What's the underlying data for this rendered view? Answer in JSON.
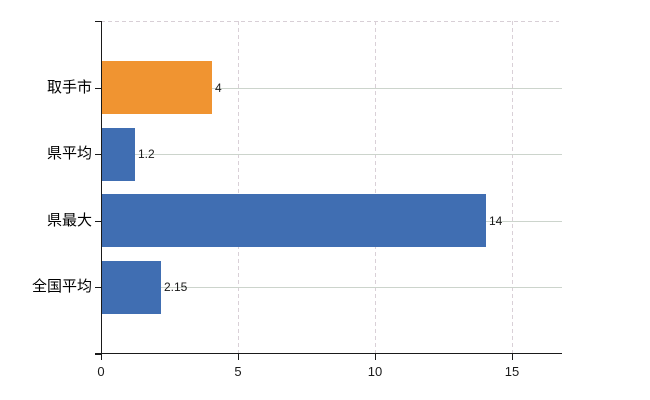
{
  "chart_data": {
    "type": "bar",
    "orientation": "horizontal",
    "title": "",
    "xlabel": "",
    "ylabel": "",
    "categories": [
      "取手市",
      "県平均",
      "県最大",
      "全国平均"
    ],
    "values": [
      4,
      1.2,
      14,
      2.15
    ],
    "value_labels": [
      "4",
      "1.2",
      "14",
      "2.15"
    ],
    "bar_colors": [
      "#f09431",
      "#406eb2",
      "#406eb2",
      "#406eb2"
    ],
    "xlim": [
      0,
      16.8
    ],
    "xticks": [
      0,
      5,
      10,
      15
    ],
    "xtick_labels": [
      "0",
      "5",
      "10",
      "15"
    ],
    "legend": "none",
    "grid": {
      "vertical_lines_at": [
        5,
        10,
        15
      ],
      "vertical_style": "dashed",
      "horizontal_row_lines": true,
      "top_border_style": "dashed"
    },
    "colors": {
      "highlight_bar": "#f09431",
      "default_bar": "#406eb2",
      "axis": "#1a1a1a",
      "grid_dashed": "#d9d0d7",
      "grid_solid": "#ccd4cc",
      "background": "#ffffff",
      "text": "#000000"
    }
  }
}
